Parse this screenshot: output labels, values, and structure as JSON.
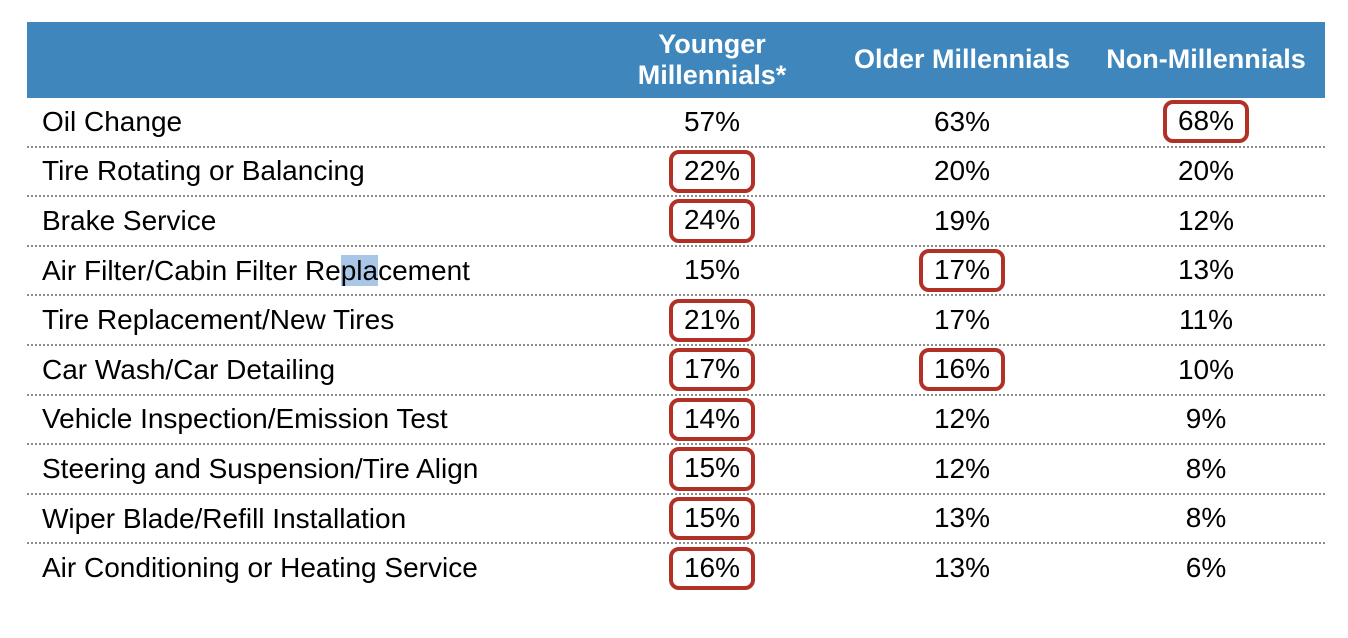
{
  "colors": {
    "header-bg": "#3e86bc",
    "header-text": "#ffffff",
    "box-border": "#b23127",
    "row-divider": "#8c8c8c",
    "text": "#000000",
    "selection-bg": "#a9c6e6"
  },
  "table": {
    "columns": [
      "Younger Millennials*",
      "Older Millennials",
      "Non-Millennials"
    ],
    "rows": [
      {
        "label": "Oil Change",
        "values": [
          {
            "text": "57%",
            "boxed": false
          },
          {
            "text": "63%",
            "boxed": false
          },
          {
            "text": "68%",
            "boxed": true
          }
        ]
      },
      {
        "label": "Tire Rotating or Balancing",
        "values": [
          {
            "text": "22%",
            "boxed": true
          },
          {
            "text": "20%",
            "boxed": false
          },
          {
            "text": "20%",
            "boxed": false
          }
        ]
      },
      {
        "label": "Brake Service",
        "values": [
          {
            "text": "24%",
            "boxed": true
          },
          {
            "text": "19%",
            "boxed": false
          },
          {
            "text": "12%",
            "boxed": false
          }
        ]
      },
      {
        "label": "Air Filter/Cabin Filter Replacement",
        "selected_text": "pla",
        "values": [
          {
            "text": "15%",
            "boxed": false
          },
          {
            "text": "17%",
            "boxed": true
          },
          {
            "text": "13%",
            "boxed": false
          }
        ]
      },
      {
        "label": "Tire Replacement/New Tires",
        "values": [
          {
            "text": "21%",
            "boxed": true
          },
          {
            "text": "17%",
            "boxed": false
          },
          {
            "text": "11%",
            "boxed": false
          }
        ]
      },
      {
        "label": "Car Wash/Car Detailing",
        "values": [
          {
            "text": "17%",
            "boxed": true
          },
          {
            "text": "16%",
            "boxed": true
          },
          {
            "text": "10%",
            "boxed": false
          }
        ]
      },
      {
        "label": "Vehicle Inspection/Emission Test",
        "values": [
          {
            "text": "14%",
            "boxed": true
          },
          {
            "text": "12%",
            "boxed": false
          },
          {
            "text": "9%",
            "boxed": false
          }
        ]
      },
      {
        "label": "Steering and Suspension/Tire Align",
        "values": [
          {
            "text": "15%",
            "boxed": true
          },
          {
            "text": "12%",
            "boxed": false
          },
          {
            "text": "8%",
            "boxed": false
          }
        ]
      },
      {
        "label": "Wiper Blade/Refill Installation",
        "values": [
          {
            "text": "15%",
            "boxed": true
          },
          {
            "text": "13%",
            "boxed": false
          },
          {
            "text": "8%",
            "boxed": false
          }
        ]
      },
      {
        "label": "Air Conditioning or Heating Service",
        "values": [
          {
            "text": "16%",
            "boxed": true
          },
          {
            "text": "13%",
            "boxed": false
          },
          {
            "text": "6%",
            "boxed": false
          }
        ]
      }
    ]
  },
  "chart_data": {
    "type": "table",
    "categories": [
      "Oil Change",
      "Tire Rotating or Balancing",
      "Brake Service",
      "Air Filter/Cabin Filter Replacement",
      "Tire Replacement/New Tires",
      "Car Wash/Car Detailing",
      "Vehicle Inspection/Emission Test",
      "Steering and Suspension/Tire Align",
      "Wiper Blade/Refill Installation",
      "Air Conditioning or Heating Service"
    ],
    "series": [
      {
        "name": "Younger Millennials*",
        "values": [
          57,
          22,
          24,
          15,
          21,
          17,
          14,
          15,
          15,
          16
        ]
      },
      {
        "name": "Older Millennials",
        "values": [
          63,
          20,
          19,
          17,
          17,
          16,
          12,
          12,
          13,
          13
        ]
      },
      {
        "name": "Non-Millennials",
        "values": [
          68,
          20,
          12,
          13,
          11,
          10,
          9,
          8,
          8,
          6
        ]
      }
    ],
    "units": "%",
    "red_boxed_cells": [
      {
        "row": "Oil Change",
        "column": "Non-Millennials",
        "value": "68%"
      },
      {
        "row": "Tire Rotating or Balancing",
        "column": "Younger Millennials*",
        "value": "22%"
      },
      {
        "row": "Brake Service",
        "column": "Younger Millennials*",
        "value": "24%"
      },
      {
        "row": "Air Filter/Cabin Filter Replacement",
        "column": "Older Millennials",
        "value": "17%"
      },
      {
        "row": "Tire Replacement/New Tires",
        "column": "Younger Millennials*",
        "value": "21%"
      },
      {
        "row": "Car Wash/Car Detailing",
        "column": "Younger Millennials*",
        "value": "17%"
      },
      {
        "row": "Car Wash/Car Detailing",
        "column": "Older Millennials",
        "value": "16%"
      },
      {
        "row": "Vehicle Inspection/Emission Test",
        "column": "Younger Millennials*",
        "value": "14%"
      },
      {
        "row": "Steering and Suspension/Tire Align",
        "column": "Younger Millennials*",
        "value": "15%"
      },
      {
        "row": "Wiper Blade/Refill Installation",
        "column": "Younger Millennials*",
        "value": "15%"
      },
      {
        "row": "Air Conditioning or Heating Service",
        "column": "Younger Millennials*",
        "value": "16%"
      }
    ]
  }
}
